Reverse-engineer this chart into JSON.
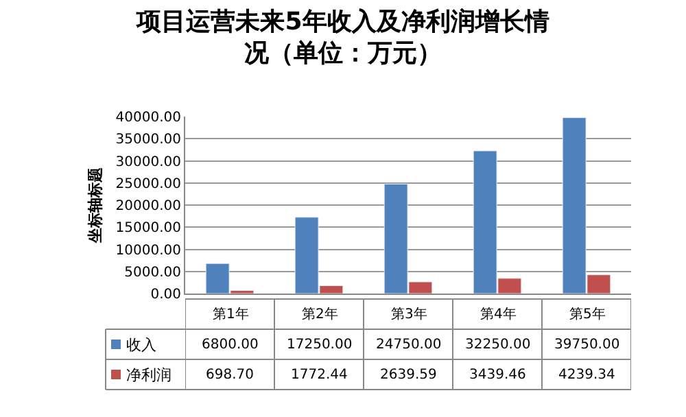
{
  "chart_data": {
    "type": "bar",
    "title": "项目运营未来5年收入及净利润增长情况（单位：万元）",
    "ylabel": "坐标轴标题",
    "categories": [
      "第1年",
      "第2年",
      "第3年",
      "第4年",
      "第5年"
    ],
    "series": [
      {
        "name": "收入",
        "color": "#4f81bd",
        "values": [
          6800.0,
          17250.0,
          24750.0,
          32250.0,
          39750.0
        ],
        "value_labels": [
          "6800.00",
          "17250.00",
          "24750.00",
          "32250.00",
          "39750.00"
        ]
      },
      {
        "name": "净利润",
        "color": "#c0504d",
        "values": [
          698.7,
          1772.44,
          2639.59,
          3439.46,
          4239.34
        ],
        "value_labels": [
          "698.70",
          "1772.44",
          "2639.59",
          "3439.46",
          "4239.34"
        ]
      }
    ],
    "ylim": [
      0,
      40000
    ],
    "yticks": [
      {
        "value": 0,
        "label": "0.00"
      },
      {
        "value": 5000,
        "label": "5000.00"
      },
      {
        "value": 10000,
        "label": "10000.00"
      },
      {
        "value": 15000,
        "label": "15000.00"
      },
      {
        "value": 20000,
        "label": "20000.00"
      },
      {
        "value": 25000,
        "label": "25000.00"
      },
      {
        "value": 30000,
        "label": "30000.00"
      },
      {
        "value": 35000,
        "label": "35000.00"
      },
      {
        "value": 40000,
        "label": "40000.00"
      }
    ],
    "grid": "y",
    "legend": "bottom left"
  }
}
